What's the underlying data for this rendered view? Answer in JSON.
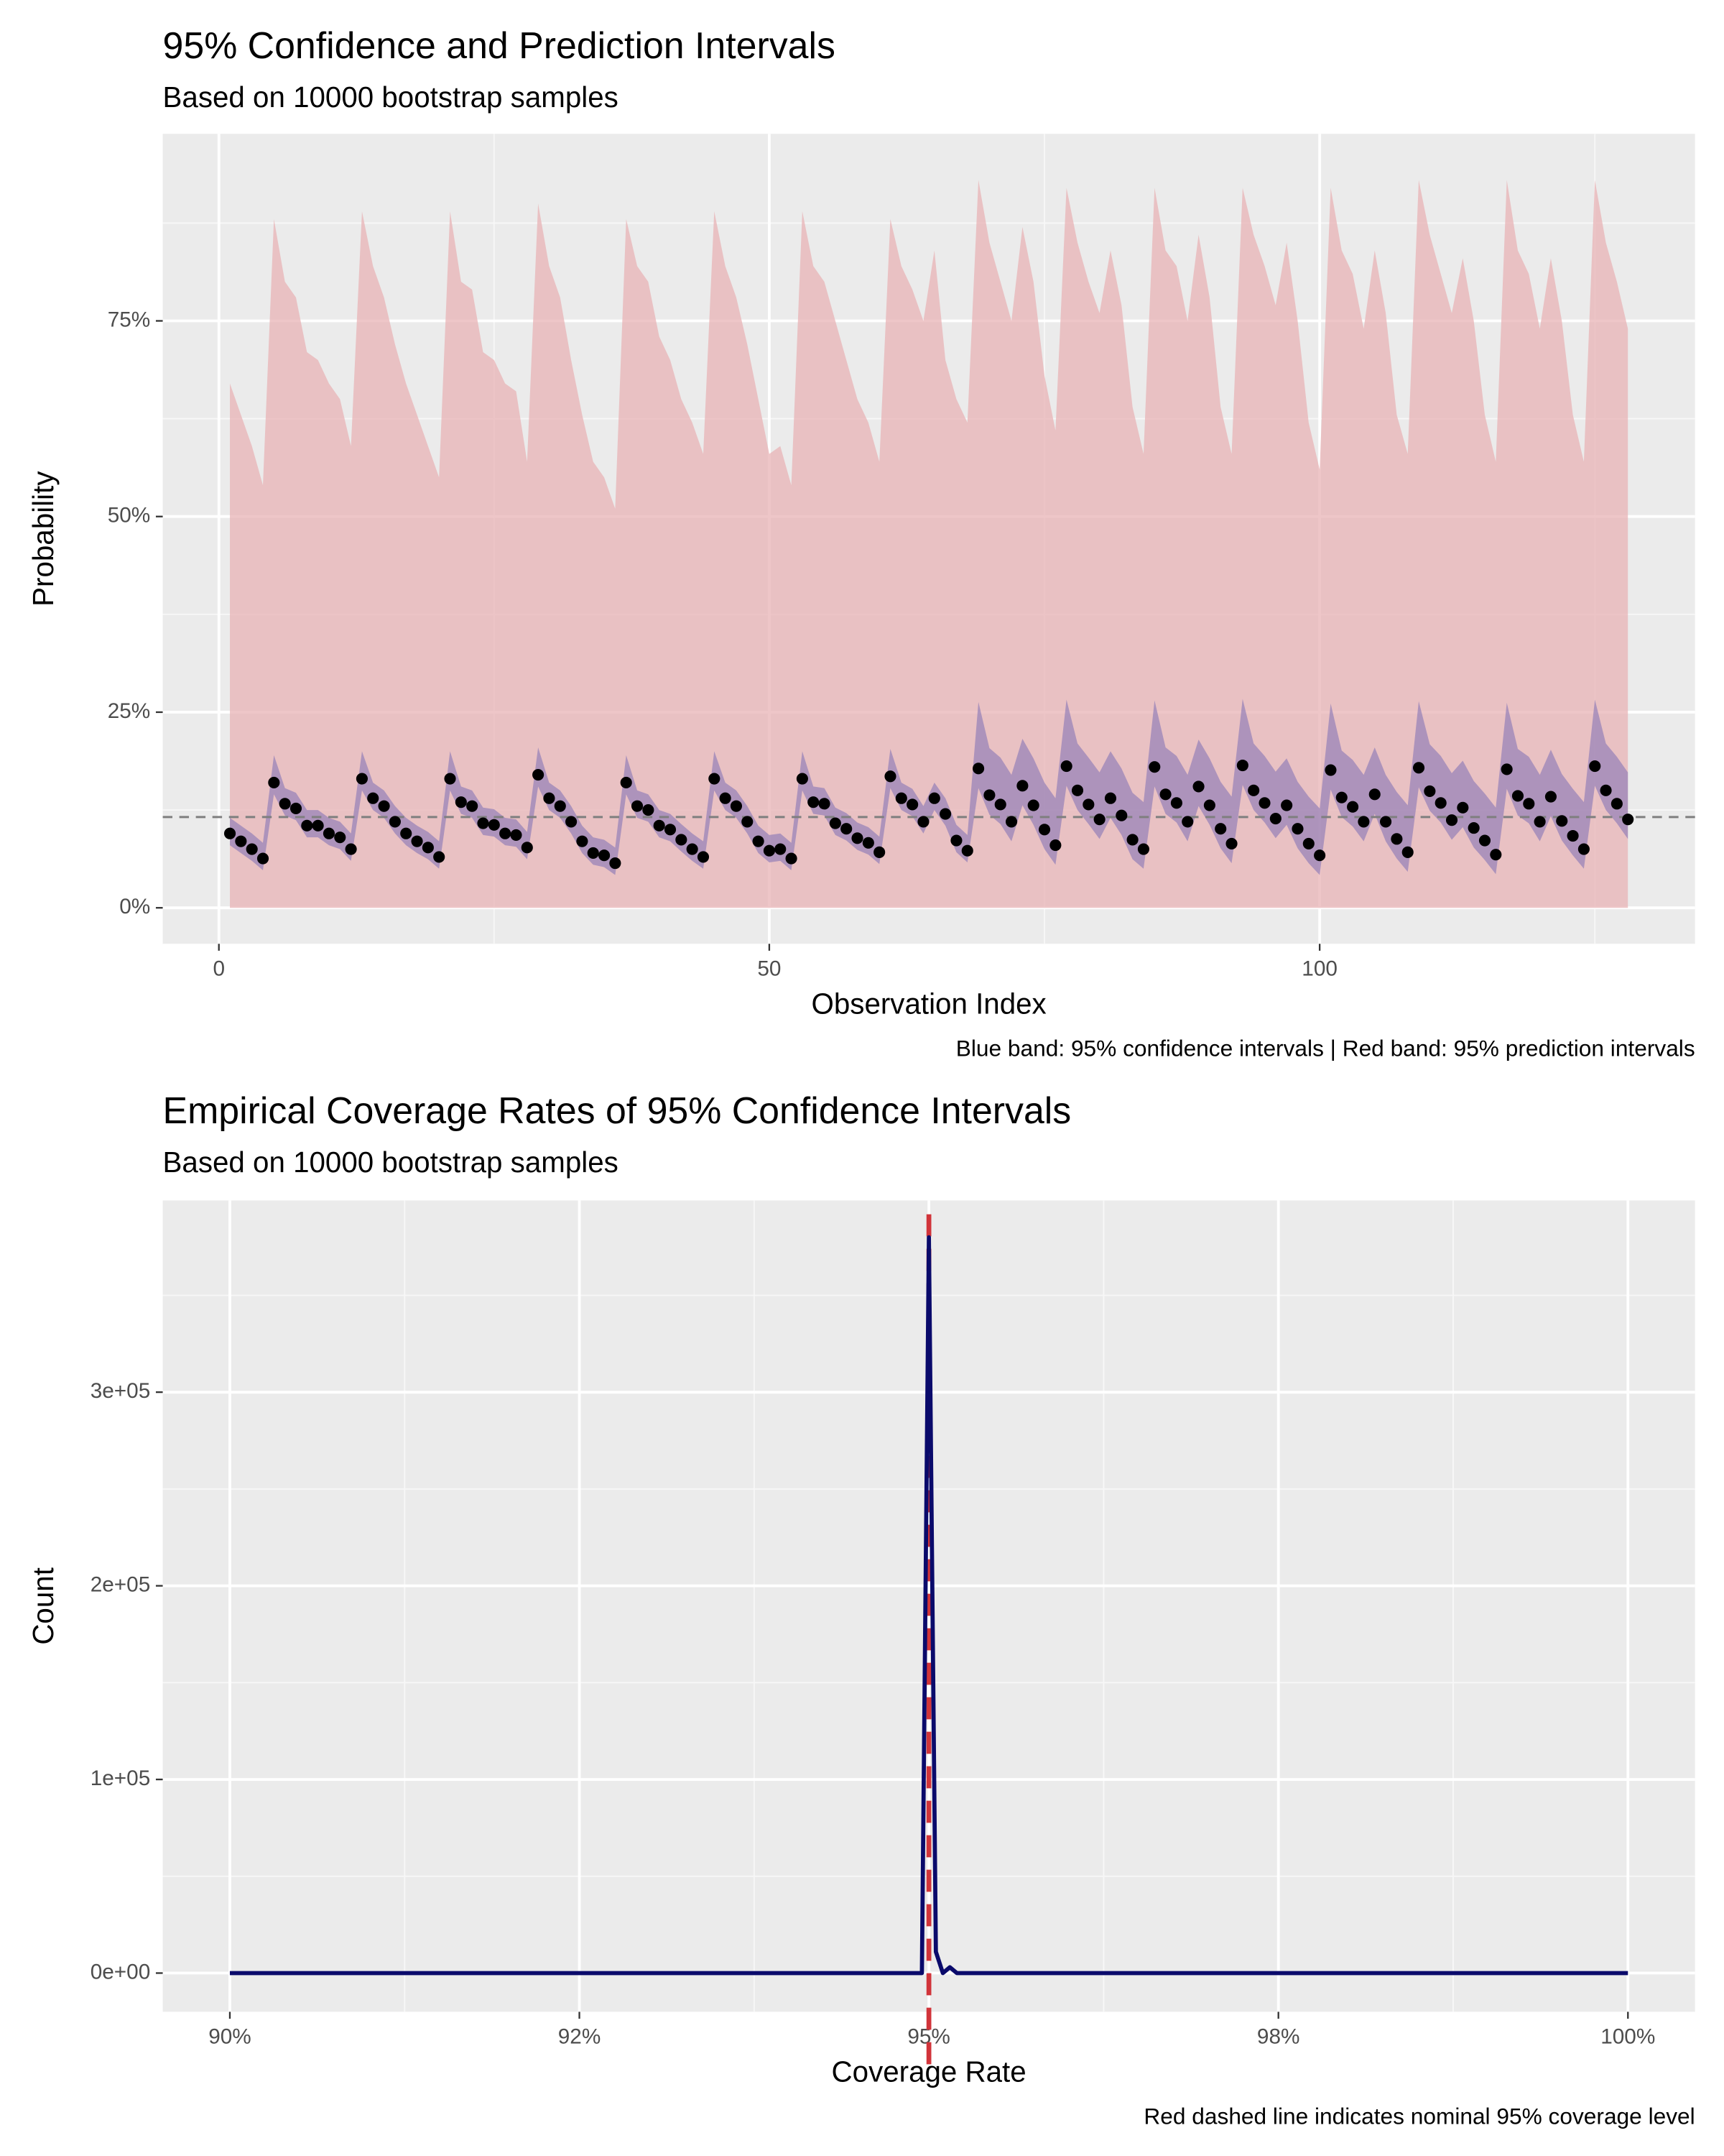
{
  "chart_data": [
    {
      "type": "ribbon",
      "title": "95% Confidence and Prediction Intervals",
      "subtitle": "Based on 10000 bootstrap samples",
      "x_label": "Observation Index",
      "y_label": "Probability",
      "caption": "Blue band: 95% confidence intervals | Red band: 95% prediction intervals",
      "x": [
        1,
        2,
        3,
        4,
        5,
        6,
        7,
        8,
        9,
        10,
        11,
        12,
        13,
        14,
        15,
        16,
        17,
        18,
        19,
        20,
        21,
        22,
        23,
        24,
        25,
        26,
        27,
        28,
        29,
        30,
        31,
        32,
        33,
        34,
        35,
        36,
        37,
        38,
        39,
        40,
        41,
        42,
        43,
        44,
        45,
        46,
        47,
        48,
        49,
        50,
        51,
        52,
        53,
        54,
        55,
        56,
        57,
        58,
        59,
        60,
        61,
        62,
        63,
        64,
        65,
        66,
        67,
        68,
        69,
        70,
        71,
        72,
        73,
        74,
        75,
        76,
        77,
        78,
        79,
        80,
        81,
        82,
        83,
        84,
        85,
        86,
        87,
        88,
        89,
        90,
        91,
        92,
        93,
        94,
        95,
        96,
        97,
        98,
        99,
        100,
        101,
        102,
        103,
        104,
        105,
        106,
        107,
        108,
        109,
        110,
        111,
        112,
        113,
        114,
        115,
        116,
        117,
        118,
        119,
        120,
        121,
        122,
        123,
        124,
        125,
        126,
        127,
        128
      ],
      "values": [
        9.5,
        8.5,
        7.5,
        6.3,
        16,
        13.3,
        12.7,
        10.5,
        10.5,
        9.5,
        9,
        7.5,
        16.5,
        14,
        13,
        11,
        9.5,
        8.5,
        7.7,
        6.5,
        16.5,
        13.5,
        13,
        10.8,
        10.6,
        9.5,
        9.3,
        7.7,
        17,
        14,
        13,
        11,
        8.5,
        7,
        6.7,
        5.7,
        16,
        13,
        12.5,
        10.5,
        10,
        8.7,
        7.5,
        6.5,
        16.5,
        14,
        13,
        11,
        8.5,
        7.3,
        7.5,
        6.3,
        16.5,
        13.5,
        13.3,
        10.8,
        10.1,
        8.9,
        8.3,
        7.1,
        16.8,
        14,
        13.2,
        11,
        14,
        12,
        8.6,
        7.3,
        17.8,
        14.4,
        13.2,
        11,
        15.6,
        13.1,
        10,
        8,
        18.1,
        15,
        13.2,
        11.3,
        14,
        11.8,
        8.7,
        7.5,
        18,
        14.5,
        13.4,
        11,
        15.5,
        13.1,
        10.1,
        8.2,
        18.2,
        15,
        13.4,
        11.4,
        13.1,
        10.1,
        8.2,
        6.7,
        17.6,
        14.1,
        12.9,
        11,
        14.5,
        11,
        8.8,
        7.1,
        17.9,
        14.9,
        13.4,
        11.2,
        12.8,
        10.2,
        8.6,
        6.8,
        17.7,
        14.3,
        13.3,
        11,
        14.2,
        11.1,
        9.2,
        7.5,
        18.1,
        15,
        13.3,
        11.3
      ],
      "ci_lower": [
        8,
        7,
        6,
        4.8,
        14.5,
        11.8,
        11.2,
        9,
        9,
        8,
        7.5,
        6,
        15,
        12.5,
        11.5,
        9.5,
        8,
        7,
        6.2,
        5,
        15,
        12,
        11.5,
        9.3,
        9.1,
        8,
        7.8,
        6.2,
        15.5,
        12.5,
        11.5,
        9.5,
        7,
        5.5,
        5.2,
        4.2,
        14.5,
        11.5,
        11,
        9,
        8.5,
        7.2,
        6,
        5,
        15,
        12.5,
        11.5,
        9.5,
        7,
        5.8,
        6,
        4.8,
        15,
        12,
        11.8,
        9.3,
        8.6,
        7.4,
        6.8,
        5.6,
        15.3,
        12.5,
        11.7,
        9.5,
        12.5,
        10.5,
        7.1,
        5.8,
        15.3,
        11.9,
        10.7,
        8.5,
        13.1,
        10.6,
        7.5,
        5.5,
        15.6,
        12.5,
        10.7,
        8.8,
        11.5,
        9.3,
        6.2,
        5,
        15.5,
        12,
        10.9,
        8.5,
        13,
        10.6,
        7.6,
        5.7,
        15.7,
        12.5,
        10.9,
        8.9,
        10.6,
        7.6,
        5.7,
        4.2,
        15.1,
        11.6,
        10.4,
        8.5,
        12,
        8.5,
        6.3,
        4.6,
        15.4,
        12.4,
        10.9,
        8.7,
        10.3,
        7.7,
        6.1,
        4.3,
        15.2,
        11.8,
        10.8,
        8.5,
        11.7,
        8.6,
        6.7,
        5,
        15.6,
        12.5,
        10.8,
        8.8
      ],
      "ci_upper": [
        11.5,
        10.5,
        9.5,
        8.3,
        19.5,
        15.3,
        14.7,
        12.5,
        12.5,
        11.5,
        11,
        9.5,
        20,
        16,
        15,
        13,
        11.5,
        10.5,
        9.7,
        8.5,
        20,
        15.5,
        15,
        12.8,
        12.6,
        11.5,
        11.3,
        9.7,
        20.5,
        16,
        15,
        13,
        10.5,
        9,
        8.7,
        7.7,
        19.5,
        15,
        14.5,
        12.5,
        12,
        10.7,
        9.5,
        8.5,
        20,
        16,
        15,
        13,
        10.5,
        9.3,
        9.5,
        8.3,
        20,
        15.5,
        15.3,
        12.8,
        12.1,
        10.9,
        10.3,
        9.1,
        20.3,
        16,
        15.2,
        13,
        16,
        14,
        10.6,
        9.3,
        26.3,
        20.4,
        19.2,
        17,
        21.6,
        19.1,
        16,
        14,
        26.6,
        21,
        19.2,
        17.3,
        20,
        17.8,
        14.7,
        13.5,
        26.5,
        20.5,
        19.4,
        17,
        21.5,
        19.1,
        16.1,
        14.2,
        26.7,
        21,
        19.4,
        17.4,
        19.1,
        16.1,
        14.2,
        12.7,
        26.1,
        20.1,
        18.9,
        17,
        20.5,
        17,
        14.8,
        13.1,
        26.4,
        20.9,
        19.4,
        17.2,
        18.8,
        16.2,
        14.6,
        12.8,
        26.2,
        20.3,
        19.3,
        17,
        20.2,
        17.1,
        15.2,
        13.5,
        26.6,
        21,
        19.3,
        17.3
      ],
      "pi_lower": [
        0,
        0,
        0,
        0,
        0,
        0,
        0,
        0,
        0,
        0,
        0,
        0,
        0,
        0,
        0,
        0,
        0,
        0,
        0,
        0,
        0,
        0,
        0,
        0,
        0,
        0,
        0,
        0,
        0,
        0,
        0,
        0,
        0,
        0,
        0,
        0,
        0,
        0,
        0,
        0,
        0,
        0,
        0,
        0,
        0,
        0,
        0,
        0,
        0,
        0,
        0,
        0,
        0,
        0,
        0,
        0,
        0,
        0,
        0,
        0,
        0,
        0,
        0,
        0,
        0,
        0,
        0,
        0,
        0,
        0,
        0,
        0,
        0,
        0,
        0,
        0,
        0,
        0,
        0,
        0,
        0,
        0,
        0,
        0,
        0,
        0,
        0,
        0,
        0,
        0,
        0,
        0,
        0,
        0,
        0,
        0,
        0,
        0,
        0,
        0,
        0,
        0,
        0,
        0,
        0,
        0,
        0,
        0,
        0,
        0,
        0,
        0,
        0,
        0,
        0,
        0,
        0,
        0,
        0,
        0,
        0,
        0,
        0,
        0,
        0,
        0,
        0,
        0
      ],
      "pi_upper": [
        67,
        63,
        59,
        54,
        88,
        80,
        78,
        71,
        70,
        67,
        65,
        59,
        89,
        82,
        78,
        72,
        67,
        63,
        59,
        55,
        89,
        80,
        79,
        71,
        70,
        67,
        66,
        57,
        90,
        82,
        78,
        70,
        63,
        57,
        55,
        51,
        88,
        82,
        80,
        73,
        70,
        65,
        62,
        58,
        89,
        82,
        78,
        72,
        65,
        58,
        59,
        54,
        89,
        82,
        80,
        75,
        70,
        65,
        62,
        57,
        88,
        82,
        79,
        75,
        84,
        70,
        65,
        62,
        93,
        85,
        80,
        75,
        87,
        80,
        68,
        61,
        92,
        85,
        80,
        76,
        84,
        77,
        64,
        58,
        92,
        84,
        82,
        75,
        86,
        78,
        64,
        58,
        92,
        86,
        82,
        77,
        85,
        75,
        62,
        56,
        92,
        84,
        81,
        74,
        84,
        76,
        63,
        58,
        93,
        86,
        81,
        76,
        83,
        75,
        63,
        57,
        93,
        84,
        81,
        74,
        83,
        75,
        63,
        57,
        93,
        85,
        80,
        74
      ],
      "hline": 11.6,
      "point_color": "#000000",
      "ci_color": "#7b6db5",
      "pi_color": "#e8b3b6",
      "hline_color": "#7f7f7f",
      "xlim": [
        -5.1,
        134.1
      ],
      "ylim": [
        -4.6,
        98.9
      ],
      "xticks": [
        0,
        50,
        100
      ],
      "yticks": [
        {
          "value": 0,
          "label": "0%"
        },
        {
          "value": 25,
          "label": "25%"
        },
        {
          "value": 50,
          "label": "50%"
        },
        {
          "value": 75,
          "label": "75%"
        }
      ],
      "grid": true
    },
    {
      "type": "line",
      "title": "Empirical Coverage Rates of 95% Confidence Intervals",
      "subtitle": "Based on 10000 bootstrap samples",
      "x_label": "Coverage Rate",
      "y_label": "Count",
      "caption": "Red dashed line indicates nominal 95% coverage level",
      "x": [
        0.9,
        0.9495,
        0.95,
        0.9505,
        0.951,
        0.9515,
        0.952,
        1.0
      ],
      "values": [
        0,
        0,
        380000,
        11000,
        0,
        3000,
        0,
        0
      ],
      "color": "#0a0a6b",
      "vline": 0.95,
      "vline_color": "#d1343a",
      "xlim": [
        0.8952,
        1.0048
      ],
      "ylim": [
        -20000,
        399000
      ],
      "xticks": [
        {
          "value": 0.9,
          "label": "90%"
        },
        {
          "value": 0.925,
          "label": "92%"
        },
        {
          "value": 0.95,
          "label": "95%"
        },
        {
          "value": 0.975,
          "label": "98%"
        },
        {
          "value": 1.0,
          "label": "100%"
        }
      ],
      "yticks": [
        {
          "value": 0,
          "label": "0e+00"
        },
        {
          "value": 100000,
          "label": "1e+05"
        },
        {
          "value": 200000,
          "label": "2e+05"
        },
        {
          "value": 300000,
          "label": "3e+05"
        }
      ],
      "grid": true
    }
  ]
}
